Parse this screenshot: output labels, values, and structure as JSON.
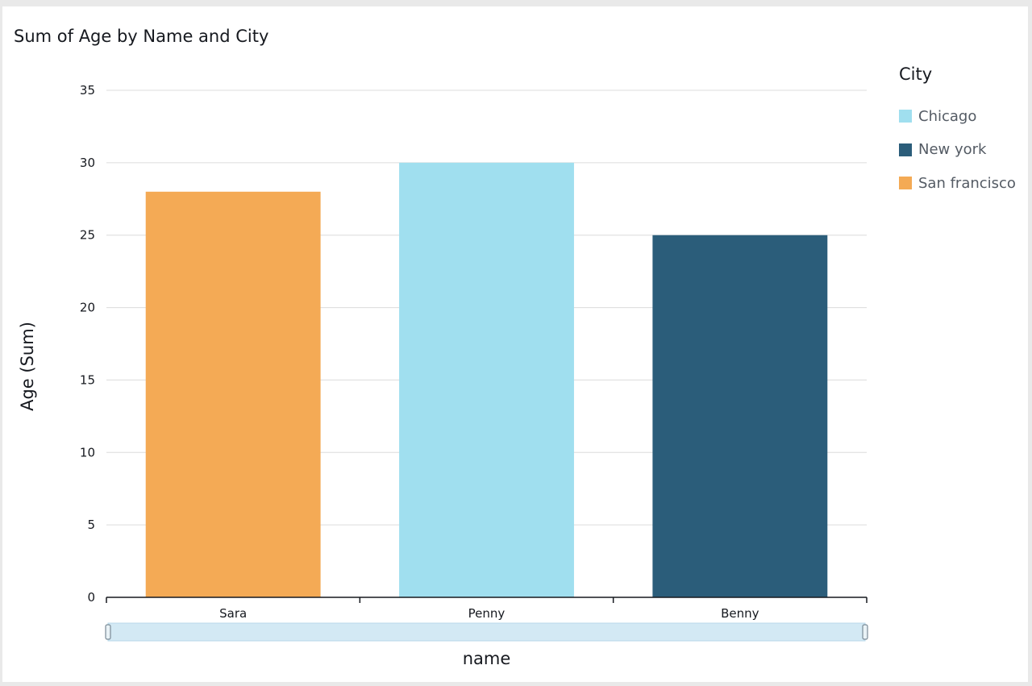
{
  "chart_data": {
    "type": "bar",
    "title": "Sum of Age by Name and City",
    "xlabel": "name",
    "ylabel": "Age (Sum)",
    "categories": [
      "Sara",
      "Penny",
      "Benny"
    ],
    "values": [
      28,
      30,
      25
    ],
    "bar_series": [
      "San francisco",
      "Chicago",
      "New york"
    ],
    "series": [
      {
        "name": "Chicago",
        "color": "#a0dfef"
      },
      {
        "name": "New york",
        "color": "#2b5d7a"
      },
      {
        "name": "San francisco",
        "color": "#f4aa55"
      }
    ],
    "yticks": [
      "0",
      "5",
      "10",
      "15",
      "20",
      "25",
      "30",
      "35"
    ],
    "ylim": [
      0,
      35
    ],
    "grid": true,
    "legend": {
      "title": "City",
      "position": "right"
    },
    "range_slider": true
  }
}
